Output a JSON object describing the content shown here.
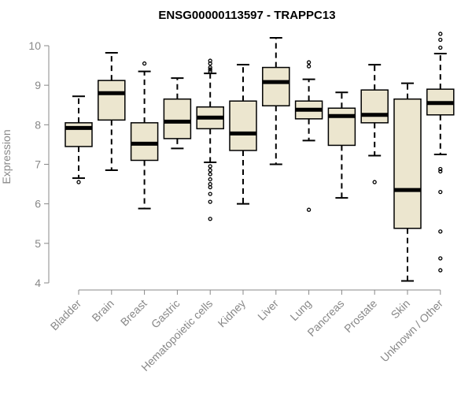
{
  "chart_data": {
    "type": "boxplot",
    "title": "ENSG00000113597 - TRAPPC13",
    "ylabel": "Expression",
    "xlabel": "",
    "ylim": [
      4,
      10.2
    ],
    "yticks": [
      4,
      5,
      6,
      7,
      8,
      9,
      10
    ],
    "grid": false,
    "legend": "none",
    "colors": {
      "box_fill": "#ece6cf",
      "box_stroke": "#000000",
      "median": "#000000",
      "axis": "#888888",
      "tick_label": "#888888",
      "title": "#000000"
    },
    "categories": [
      "Bladder",
      "Brain",
      "Breast",
      "Gastric",
      "Hematopoietic cells",
      "Kidney",
      "Liver",
      "Lung",
      "Pancreas",
      "Prostate",
      "Skin",
      "Unknown / Other"
    ],
    "boxes": [
      {
        "name": "Bladder",
        "whisker_low": 6.65,
        "q1": 7.45,
        "median": 7.92,
        "q3": 8.05,
        "whisker_high": 8.72,
        "outliers": [
          6.55
        ]
      },
      {
        "name": "Brain",
        "whisker_low": 6.85,
        "q1": 8.12,
        "median": 8.8,
        "q3": 9.12,
        "whisker_high": 9.82,
        "outliers": []
      },
      {
        "name": "Breast",
        "whisker_low": 5.88,
        "q1": 7.1,
        "median": 7.52,
        "q3": 8.05,
        "whisker_high": 9.35,
        "outliers": [
          9.55
        ]
      },
      {
        "name": "Gastric",
        "whisker_low": 7.4,
        "q1": 7.65,
        "median": 8.08,
        "q3": 8.65,
        "whisker_high": 9.18,
        "outliers": []
      },
      {
        "name": "Hematopoietic cells",
        "whisker_low": 7.05,
        "q1": 7.9,
        "median": 8.18,
        "q3": 8.45,
        "whisker_high": 9.3,
        "outliers": [
          9.35,
          9.45,
          9.55,
          9.62,
          9.4,
          6.95,
          6.85,
          6.75,
          6.62,
          6.5,
          6.42,
          6.25,
          6.05,
          5.62
        ]
      },
      {
        "name": "Kidney",
        "whisker_low": 6.0,
        "q1": 7.35,
        "median": 7.78,
        "q3": 8.6,
        "whisker_high": 9.52,
        "outliers": []
      },
      {
        "name": "Liver",
        "whisker_low": 7.0,
        "q1": 8.48,
        "median": 9.08,
        "q3": 9.45,
        "whisker_high": 10.2,
        "outliers": []
      },
      {
        "name": "Lung",
        "whisker_low": 7.6,
        "q1": 8.15,
        "median": 8.38,
        "q3": 8.6,
        "whisker_high": 9.15,
        "outliers": [
          9.58,
          9.48,
          5.85
        ]
      },
      {
        "name": "Pancreas",
        "whisker_low": 6.15,
        "q1": 7.48,
        "median": 8.22,
        "q3": 8.42,
        "whisker_high": 8.82,
        "outliers": []
      },
      {
        "name": "Prostate",
        "whisker_low": 7.22,
        "q1": 8.05,
        "median": 8.25,
        "q3": 8.88,
        "whisker_high": 9.52,
        "outliers": [
          6.55
        ]
      },
      {
        "name": "Skin",
        "whisker_low": 4.05,
        "q1": 5.38,
        "median": 6.35,
        "q3": 8.65,
        "whisker_high": 9.05,
        "outliers": []
      },
      {
        "name": "Unknown / Other",
        "whisker_low": 7.25,
        "q1": 8.25,
        "median": 8.55,
        "q3": 8.9,
        "whisker_high": 9.8,
        "outliers": [
          10.3,
          10.15,
          9.95,
          6.88,
          6.82,
          6.3,
          5.3,
          4.62,
          4.32
        ]
      }
    ]
  }
}
